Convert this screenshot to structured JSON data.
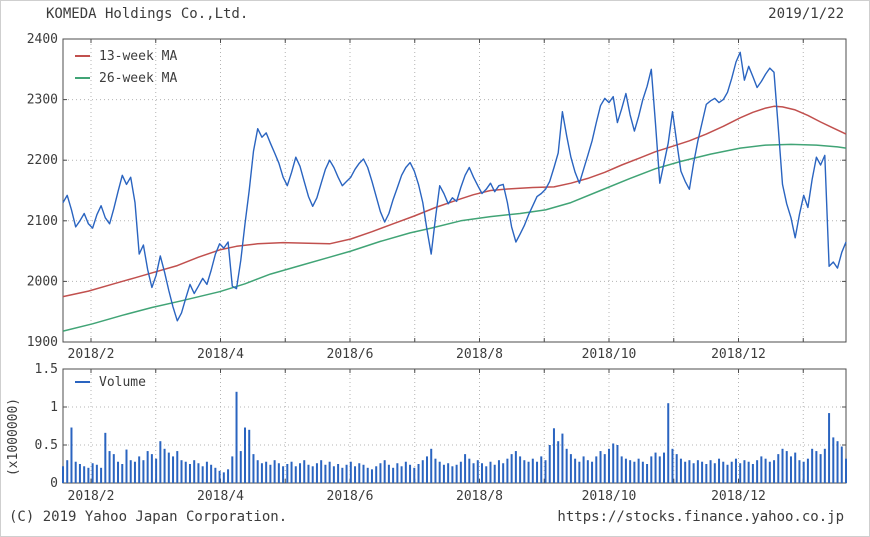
{
  "header": {
    "title": "KOMEDA Holdings Co.,Ltd.",
    "date": "2019/1/22"
  },
  "footer": {
    "copyright": "(C) 2019 Yahoo Japan Corporation.",
    "url": "https://stocks.finance.yahoo.co.jp"
  },
  "colors": {
    "price": "#2a64c0",
    "ma13": "#c1504e",
    "ma26": "#41a476",
    "volume": "#2a64c0",
    "grid": "#b4b4b4",
    "frame": "#4d4d4d",
    "text": "#3c3c3c"
  },
  "chart_data": [
    {
      "type": "line",
      "name": "price-chart",
      "ylim": [
        1900,
        2400
      ],
      "y_ticks": [
        1900,
        2000,
        2100,
        2200,
        2300,
        2400
      ],
      "x_tick_labels": [
        "2018/2",
        "2018/4",
        "2018/6",
        "2018/8",
        "2018/10",
        "2018/12"
      ],
      "grid": true,
      "legend_position": "top-left",
      "legend": [
        {
          "label": "13-week MA",
          "color": "#c1504e"
        },
        {
          "label": "26-week MA",
          "color": "#41a476"
        }
      ],
      "series": [
        {
          "name": "close",
          "color": "#2a64c0",
          "values": [
            2130,
            2142,
            2118,
            2090,
            2100,
            2112,
            2095,
            2088,
            2110,
            2125,
            2105,
            2095,
            2120,
            2148,
            2175,
            2160,
            2172,
            2130,
            2045,
            2060,
            2020,
            1990,
            2010,
            2042,
            2015,
            1985,
            1958,
            1935,
            1948,
            1972,
            1995,
            1980,
            1992,
            2005,
            1995,
            2018,
            2045,
            2062,
            2055,
            2065,
            1992,
            1988,
            2035,
            2095,
            2150,
            2215,
            2252,
            2238,
            2245,
            2228,
            2212,
            2195,
            2172,
            2158,
            2180,
            2205,
            2190,
            2165,
            2140,
            2124,
            2138,
            2162,
            2185,
            2200,
            2188,
            2172,
            2158,
            2165,
            2172,
            2185,
            2195,
            2202,
            2188,
            2165,
            2140,
            2115,
            2098,
            2112,
            2135,
            2155,
            2175,
            2188,
            2196,
            2182,
            2160,
            2130,
            2085,
            2045,
            2105,
            2158,
            2145,
            2128,
            2138,
            2132,
            2155,
            2175,
            2188,
            2172,
            2158,
            2145,
            2152,
            2162,
            2148,
            2158,
            2160,
            2130,
            2090,
            2065,
            2078,
            2092,
            2110,
            2125,
            2140,
            2145,
            2152,
            2165,
            2188,
            2212,
            2280,
            2240,
            2205,
            2180,
            2162,
            2185,
            2208,
            2232,
            2262,
            2290,
            2302,
            2295,
            2305,
            2262,
            2285,
            2310,
            2275,
            2248,
            2272,
            2300,
            2322,
            2350,
            2260,
            2162,
            2195,
            2228,
            2280,
            2230,
            2182,
            2165,
            2152,
            2195,
            2232,
            2262,
            2292,
            2298,
            2302,
            2295,
            2300,
            2312,
            2335,
            2362,
            2378,
            2332,
            2355,
            2338,
            2320,
            2330,
            2342,
            2352,
            2345,
            2253,
            2160,
            2128,
            2105,
            2072,
            2110,
            2142,
            2122,
            2168,
            2205,
            2192,
            2208,
            2025,
            2032,
            2022,
            2048,
            2065
          ]
        },
        {
          "name": "13-week MA",
          "color": "#c1504e",
          "anchors": [
            [
              0,
              1975
            ],
            [
              6,
              1984
            ],
            [
              12,
              1996
            ],
            [
              17,
              2006
            ],
            [
              22,
              2016
            ],
            [
              27,
              2026
            ],
            [
              32,
              2040
            ],
            [
              37,
              2052
            ],
            [
              41,
              2058
            ],
            [
              46,
              2062
            ],
            [
              52,
              2064
            ],
            [
              58,
              2063
            ],
            [
              63,
              2062
            ],
            [
              68,
              2070
            ],
            [
              73,
              2082
            ],
            [
              78,
              2095
            ],
            [
              83,
              2108
            ],
            [
              88,
              2122
            ],
            [
              93,
              2134
            ],
            [
              97,
              2143
            ],
            [
              101,
              2150
            ],
            [
              106,
              2153
            ],
            [
              111,
              2155
            ],
            [
              116,
              2156
            ],
            [
              120,
              2162
            ],
            [
              124,
              2170
            ],
            [
              128,
              2180
            ],
            [
              132,
              2192
            ],
            [
              136,
              2203
            ],
            [
              140,
              2214
            ],
            [
              144,
              2223
            ],
            [
              148,
              2232
            ],
            [
              152,
              2243
            ],
            [
              156,
              2256
            ],
            [
              160,
              2270
            ],
            [
              163,
              2279
            ],
            [
              166,
              2286
            ],
            [
              168,
              2289
            ],
            [
              170,
              2288
            ],
            [
              173,
              2283
            ],
            [
              176,
              2274
            ],
            [
              179,
              2263
            ],
            [
              182,
              2253
            ],
            [
              185,
              2243
            ]
          ]
        },
        {
          "name": "26-week MA",
          "color": "#41a476",
          "anchors": [
            [
              0,
              1918
            ],
            [
              7,
              1930
            ],
            [
              14,
              1944
            ],
            [
              21,
              1957
            ],
            [
              28,
              1968
            ],
            [
              37,
              1983
            ],
            [
              43,
              1996
            ],
            [
              49,
              2012
            ],
            [
              56,
              2026
            ],
            [
              63,
              2040
            ],
            [
              68,
              2050
            ],
            [
              75,
              2066
            ],
            [
              82,
              2080
            ],
            [
              87,
              2088
            ],
            [
              94,
              2100
            ],
            [
              101,
              2107
            ],
            [
              108,
              2112
            ],
            [
              114,
              2118
            ],
            [
              120,
              2130
            ],
            [
              127,
              2150
            ],
            [
              134,
              2170
            ],
            [
              140,
              2186
            ],
            [
              146,
              2198
            ],
            [
              153,
              2210
            ],
            [
              160,
              2220
            ],
            [
              166,
              2225
            ],
            [
              172,
              2226
            ],
            [
              178,
              2225
            ],
            [
              183,
              2222
            ],
            [
              185,
              2220
            ]
          ]
        }
      ]
    },
    {
      "type": "bar",
      "name": "volume-chart",
      "ylim": [
        0,
        1.5
      ],
      "y_ticks": [
        0,
        0.5,
        1,
        1.5
      ],
      "ylabel": "(x1000000)",
      "x_tick_labels": [
        "2018/2",
        "2018/4",
        "2018/6",
        "2018/8",
        "2018/10",
        "2018/12"
      ],
      "grid": true,
      "legend": [
        {
          "label": "Volume",
          "color": "#2a64c0"
        }
      ],
      "values": [
        0.22,
        0.3,
        0.73,
        0.28,
        0.25,
        0.22,
        0.2,
        0.26,
        0.24,
        0.2,
        0.66,
        0.42,
        0.38,
        0.28,
        0.25,
        0.44,
        0.3,
        0.28,
        0.35,
        0.3,
        0.42,
        0.38,
        0.32,
        0.55,
        0.45,
        0.4,
        0.35,
        0.42,
        0.3,
        0.28,
        0.25,
        0.3,
        0.26,
        0.22,
        0.28,
        0.24,
        0.2,
        0.16,
        0.14,
        0.18,
        0.35,
        1.2,
        0.42,
        0.73,
        0.7,
        0.38,
        0.3,
        0.26,
        0.28,
        0.24,
        0.3,
        0.26,
        0.22,
        0.25,
        0.28,
        0.22,
        0.26,
        0.3,
        0.24,
        0.22,
        0.26,
        0.3,
        0.24,
        0.28,
        0.22,
        0.25,
        0.2,
        0.24,
        0.28,
        0.22,
        0.26,
        0.24,
        0.2,
        0.18,
        0.22,
        0.26,
        0.3,
        0.24,
        0.2,
        0.26,
        0.22,
        0.28,
        0.24,
        0.2,
        0.25,
        0.3,
        0.35,
        0.45,
        0.32,
        0.28,
        0.24,
        0.26,
        0.22,
        0.24,
        0.28,
        0.38,
        0.32,
        0.26,
        0.3,
        0.26,
        0.22,
        0.28,
        0.24,
        0.3,
        0.26,
        0.32,
        0.38,
        0.42,
        0.35,
        0.3,
        0.28,
        0.32,
        0.28,
        0.35,
        0.3,
        0.5,
        0.72,
        0.55,
        0.65,
        0.45,
        0.38,
        0.32,
        0.28,
        0.35,
        0.3,
        0.28,
        0.35,
        0.42,
        0.38,
        0.45,
        0.52,
        0.5,
        0.35,
        0.32,
        0.3,
        0.28,
        0.32,
        0.28,
        0.25,
        0.35,
        0.4,
        0.35,
        0.4,
        1.05,
        0.45,
        0.38,
        0.32,
        0.28,
        0.3,
        0.26,
        0.3,
        0.28,
        0.25,
        0.3,
        0.26,
        0.32,
        0.28,
        0.24,
        0.28,
        0.32,
        0.26,
        0.3,
        0.28,
        0.25,
        0.3,
        0.35,
        0.32,
        0.28,
        0.3,
        0.38,
        0.45,
        0.42,
        0.35,
        0.4,
        0.3,
        0.28,
        0.32,
        0.45,
        0.42,
        0.38,
        0.45,
        0.92,
        0.6,
        0.55,
        0.48,
        0.32
      ]
    }
  ]
}
